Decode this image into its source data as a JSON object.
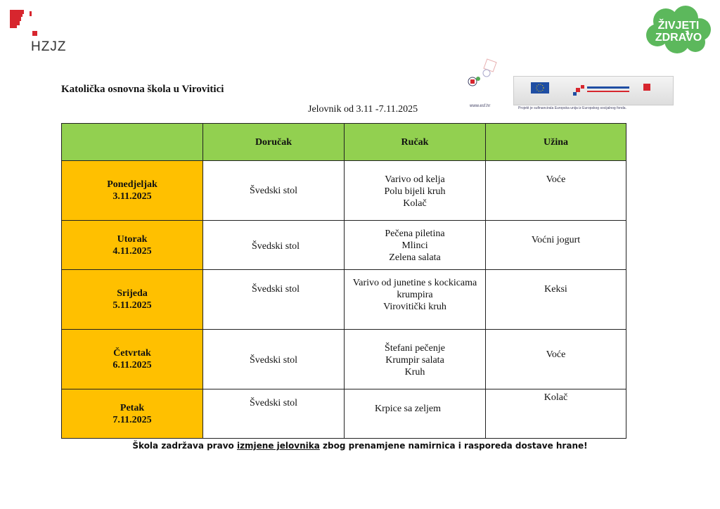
{
  "logos": {
    "hzjz": "HZJZ",
    "zivjeti_zdravo": [
      "ŽIVJETI",
      "ZDRAVO"
    ],
    "esf_url": "www.esf.hr",
    "esf_note": "Projekt je sufinancirala Europska unija iz Europskog socijalnog fonda."
  },
  "header": {
    "school": "Katolička osnovna škola u Virovitici",
    "subtitle": "Jelovnik od  3.11 -7.11.2025"
  },
  "table": {
    "columns": [
      "",
      "Doručak",
      "Ručak",
      "Užina"
    ],
    "rows": [
      {
        "day": "Ponedjeljak",
        "date": "3.11.2025",
        "dorucak": [
          "Švedski stol"
        ],
        "rucak": [
          "Varivo  od kelja",
          "Polu bijeli  kruh",
          "Kolač"
        ],
        "uzina": [
          "Voće"
        ]
      },
      {
        "day": "Utorak",
        "date": "4.11.2025",
        "dorucak": [
          "Švedski stol"
        ],
        "rucak": [
          "Pečena  piletina",
          "Mlinci",
          "Zelena salata"
        ],
        "uzina": [
          "Voćni jogurt"
        ]
      },
      {
        "day": "Srijeda",
        "date": "5.11.2025",
        "dorucak": [
          "Švedski stol"
        ],
        "rucak": [
          "Varivo od junetine s kockicama",
          "krumpira",
          "Virovitički  kruh"
        ],
        "uzina": [
          "Keksi"
        ]
      },
      {
        "day": "Četvrtak",
        "date": "6.11.2025",
        "dorucak": [
          "Švedski stol"
        ],
        "rucak": [
          "Štefani pečenje",
          "Krumpir salata",
          "Kruh"
        ],
        "uzina": [
          "Voće"
        ]
      },
      {
        "day": "Petak",
        "date": "7.11.2025",
        "dorucak": [
          "Švedski stol"
        ],
        "rucak": [
          "Krpice sa zeljem"
        ],
        "uzina": [
          "Kolač"
        ]
      }
    ]
  },
  "footer": {
    "part1": "Škola zadržava pravo ",
    "underlined": "izmjene jelovnika",
    "part2": " zbog prenamjene namirnica i rasporeda dostave hrane!"
  },
  "colors": {
    "header_green": "#92d050",
    "day_orange": "#ffc000",
    "logo_red": "#d7262e",
    "cloud_green": "#5cb85c"
  }
}
